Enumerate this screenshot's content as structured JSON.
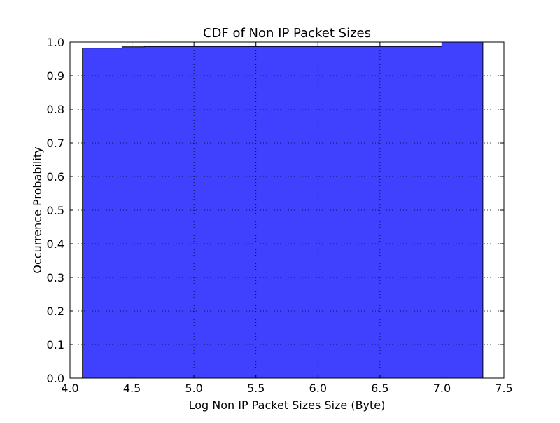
{
  "chart_data": {
    "type": "area",
    "title": "CDF of Non IP Packet Sizes",
    "xlabel": "Log Non IP Packet Sizes Size (Byte)",
    "ylabel": "Occurrence Probability",
    "xlim": [
      4.0,
      7.5
    ],
    "ylim": [
      0.0,
      1.0
    ],
    "xticks": [
      "4.0",
      "4.5",
      "5.0",
      "5.5",
      "6.0",
      "6.5",
      "7.0",
      "7.5"
    ],
    "yticks": [
      "0.0",
      "0.1",
      "0.2",
      "0.3",
      "0.4",
      "0.5",
      "0.6",
      "0.7",
      "0.8",
      "0.9",
      "1.0"
    ],
    "grid": true,
    "series": [
      {
        "color": "#4040ff",
        "step_points": [
          {
            "x": 4.1,
            "y": 0.982
          },
          {
            "x": 4.42,
            "y": 0.986
          },
          {
            "x": 4.6,
            "y": 0.987
          },
          {
            "x": 7.0,
            "y": 1.0
          },
          {
            "x": 7.33,
            "y": 1.0
          }
        ]
      }
    ]
  }
}
